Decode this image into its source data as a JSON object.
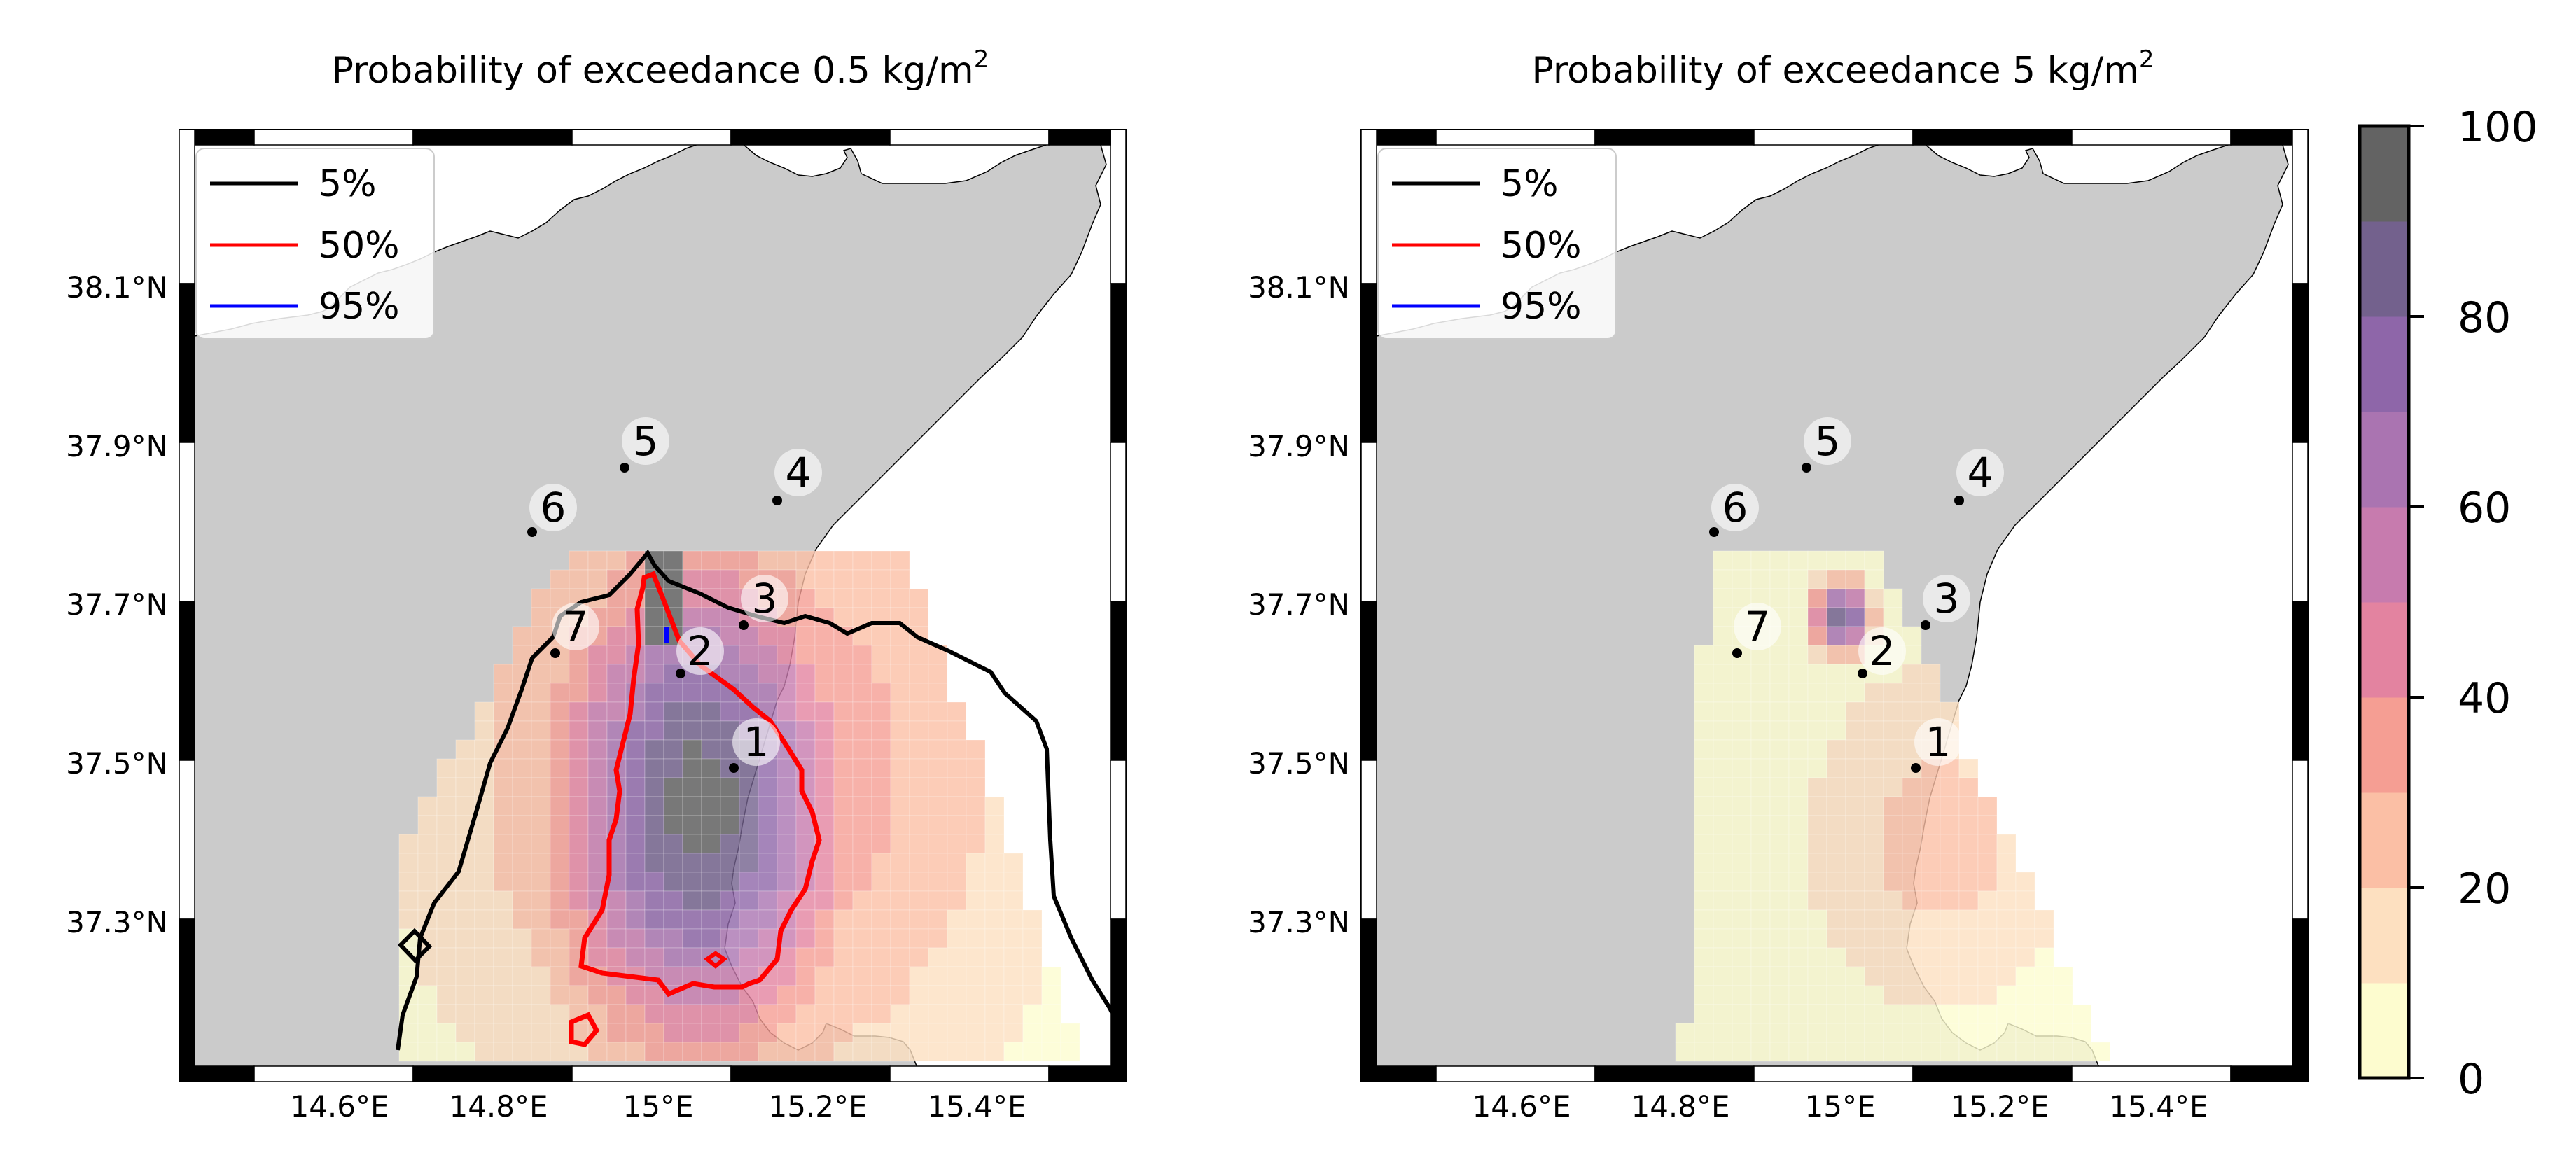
{
  "panels": [
    {
      "id": "left",
      "title_main": "Probability of exceedance 0.5 kg/m",
      "title_sup": "2"
    },
    {
      "id": "right",
      "title_main": "Probability of exceedance 5 kg/m",
      "title_sup": "2"
    }
  ],
  "legend": [
    {
      "label": "5%",
      "color": "#000000"
    },
    {
      "label": "50%",
      "color": "#ff0000"
    },
    {
      "label": "95%",
      "color": "#0000ff"
    }
  ],
  "lat_ticks": [
    "38.1°N",
    "37.9°N",
    "37.7°N",
    "37.5°N",
    "37.3°N"
  ],
  "lon_ticks": [
    "14.6°E",
    "14.8°E",
    "15°E",
    "15.2°E",
    "15.4°E"
  ],
  "colorbar": {
    "ticks": [
      "100",
      "80",
      "60",
      "40",
      "20",
      "0"
    ],
    "range": [
      0,
      100
    ],
    "levels": [
      0,
      10,
      20,
      30,
      40,
      50,
      60,
      70,
      80,
      90,
      100
    ],
    "colors": [
      "#fdfccf",
      "#fde0c0",
      "#fbbfa5",
      "#f59e93",
      "#e383a0",
      "#c77bae",
      "#aa74b1",
      "#8e66a9",
      "#73618d",
      "#636363"
    ]
  },
  "stations": [
    {
      "label": "1"
    },
    {
      "label": "2"
    },
    {
      "label": "3"
    },
    {
      "label": "4"
    },
    {
      "label": "5"
    },
    {
      "label": "6"
    },
    {
      "label": "7"
    }
  ],
  "colors": {
    "land": "#cbcbcb",
    "sea": "#ffffff",
    "frame": "#000000"
  }
}
